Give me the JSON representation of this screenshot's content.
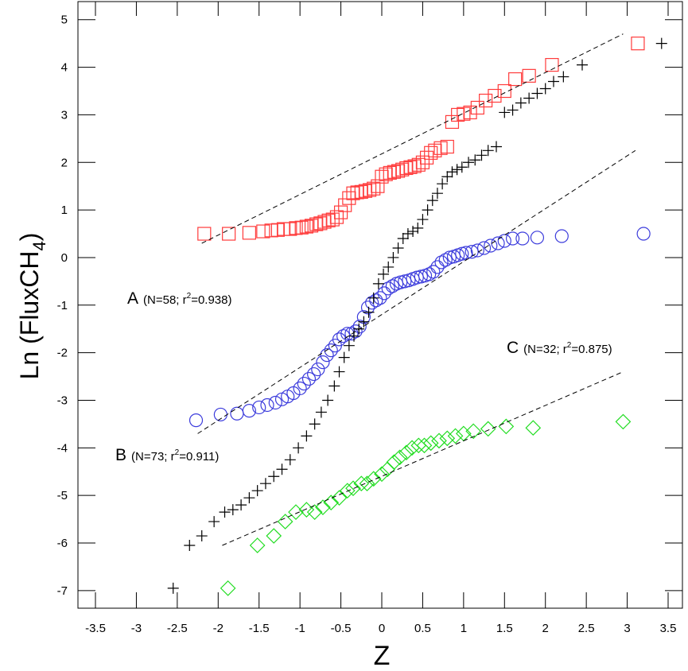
{
  "chart_data": {
    "type": "scatter",
    "x_label": "Z",
    "y_label": {
      "main": "Ln (FluxCH",
      "sub": "4",
      "tail": ")"
    },
    "xlim": [
      -3.714,
      3.675
    ],
    "ylim": [
      -7.37,
      5.38
    ],
    "xticks": [
      -3.5,
      -3,
      -2.5,
      -2,
      -1.5,
      -1,
      -0.5,
      0,
      0.5,
      1,
      1.5,
      2,
      2.5,
      3,
      3.5
    ],
    "yticks": [
      -7,
      -6,
      -5,
      -4,
      -3,
      -2,
      -1,
      0,
      1,
      2,
      3,
      4,
      5
    ],
    "legend": false,
    "annotations": [
      {
        "label": "A",
        "text": "(N=58; r",
        "sup": "2",
        "tail": "=0.938)"
      },
      {
        "label": "B",
        "text": "(N=73; r",
        "sup": "2",
        "tail": "=0.911)"
      },
      {
        "label": "C",
        "text": "(N=32; r",
        "sup": "2",
        "tail": "=0.875)"
      }
    ],
    "series": [
      {
        "marker": "square",
        "color": "#ff3b3b",
        "x": [
          -2.17,
          -1.87,
          -1.62,
          -1.45,
          -1.35,
          -1.27,
          -1.2,
          -1.12,
          -1.05,
          -0.98,
          -0.92,
          -0.86,
          -0.8,
          -0.75,
          -0.7,
          -0.65,
          -0.6,
          -0.55,
          -0.5,
          -0.45,
          -0.4,
          -0.35,
          -0.3,
          -0.25,
          -0.2,
          -0.15,
          -0.1,
          -0.05,
          0,
          0.05,
          0.1,
          0.15,
          0.2,
          0.25,
          0.3,
          0.35,
          0.4,
          0.45,
          0.5,
          0.55,
          0.6,
          0.65,
          0.72,
          0.8,
          0.86,
          0.93,
          1.0,
          1.08,
          1.17,
          1.27,
          1.38,
          1.5,
          1.63,
          1.8,
          2.08,
          3.13
        ],
        "values": [
          0.5,
          0.5,
          0.52,
          0.55,
          0.57,
          0.58,
          0.6,
          0.6,
          0.62,
          0.63,
          0.65,
          0.67,
          0.7,
          0.72,
          0.75,
          0.78,
          0.8,
          0.85,
          0.95,
          1.1,
          1.25,
          1.35,
          1.37,
          1.38,
          1.4,
          1.42,
          1.45,
          1.5,
          1.7,
          1.75,
          1.78,
          1.8,
          1.82,
          1.85,
          1.88,
          1.9,
          1.92,
          1.95,
          2.0,
          2.1,
          2.2,
          2.25,
          2.3,
          2.33,
          2.85,
          3.0,
          3.02,
          3.05,
          3.15,
          3.3,
          3.4,
          3.5,
          3.75,
          3.82,
          4.05,
          4.5
        ]
      },
      {
        "marker": "circle",
        "color": "#3c3cdc",
        "x": [
          -2.27,
          -1.97,
          -1.77,
          -1.62,
          -1.5,
          -1.4,
          -1.3,
          -1.22,
          -1.15,
          -1.08,
          -1.0,
          -0.95,
          -0.89,
          -0.83,
          -0.78,
          -0.72,
          -0.67,
          -0.62,
          -0.57,
          -0.52,
          -0.47,
          -0.42,
          -0.37,
          -0.32,
          -0.27,
          -0.22,
          -0.17,
          -0.12,
          -0.07,
          -0.02,
          0.03,
          0.08,
          0.13,
          0.18,
          0.23,
          0.28,
          0.33,
          0.38,
          0.43,
          0.48,
          0.53,
          0.58,
          0.63,
          0.68,
          0.73,
          0.78,
          0.83,
          0.88,
          0.93,
          0.98,
          1.03,
          1.1,
          1.17,
          1.25,
          1.33,
          1.42,
          1.5,
          1.6,
          1.72,
          1.9,
          2.2,
          3.2
        ],
        "values": [
          -3.42,
          -3.3,
          -3.28,
          -3.22,
          -3.15,
          -3.1,
          -3.05,
          -2.98,
          -2.92,
          -2.85,
          -2.75,
          -2.65,
          -2.55,
          -2.45,
          -2.35,
          -2.2,
          -2.05,
          -1.95,
          -1.85,
          -1.72,
          -1.65,
          -1.6,
          -1.6,
          -1.55,
          -1.45,
          -1.25,
          -1.05,
          -0.95,
          -0.9,
          -0.85,
          -0.75,
          -0.65,
          -0.6,
          -0.55,
          -0.52,
          -0.5,
          -0.48,
          -0.45,
          -0.42,
          -0.4,
          -0.38,
          -0.35,
          -0.3,
          -0.2,
          -0.1,
          -0.05,
          0.0,
          0.02,
          0.05,
          0.08,
          0.1,
          0.12,
          0.15,
          0.2,
          0.25,
          0.3,
          0.35,
          0.4,
          0.4,
          0.42,
          0.45,
          0.5
        ]
      },
      {
        "marker": "diamond",
        "color": "#22dd22",
        "x": [
          -1.88,
          -1.52,
          -1.32,
          -1.18,
          -1.05,
          -0.92,
          -0.82,
          -0.72,
          -0.62,
          -0.52,
          -0.42,
          -0.35,
          -0.25,
          -0.18,
          -0.1,
          0,
          0.07,
          0.15,
          0.22,
          0.3,
          0.37,
          0.45,
          0.52,
          0.6,
          0.7,
          0.8,
          0.9,
          1.0,
          1.12,
          1.3,
          1.52,
          1.85,
          2.95
        ],
        "values": [
          -6.95,
          -6.05,
          -5.85,
          -5.55,
          -5.35,
          -5.3,
          -5.35,
          -5.25,
          -5.15,
          -5.05,
          -4.9,
          -4.85,
          -4.75,
          -4.75,
          -4.65,
          -4.55,
          -4.45,
          -4.3,
          -4.2,
          -4.1,
          -4.0,
          -3.95,
          -3.95,
          -3.9,
          -3.85,
          -3.8,
          -3.75,
          -3.7,
          -3.65,
          -3.6,
          -3.55,
          -3.58,
          -3.45
        ]
      },
      {
        "marker": "plus",
        "color": "#000000",
        "x": [
          -2.55,
          -2.35,
          -2.2,
          -2.05,
          -1.92,
          -1.82,
          -1.72,
          -1.62,
          -1.52,
          -1.42,
          -1.32,
          -1.22,
          -1.12,
          -1.02,
          -0.92,
          -0.82,
          -0.74,
          -0.66,
          -0.58,
          -0.52,
          -0.46,
          -0.4,
          -0.34,
          -0.28,
          -0.22,
          -0.16,
          -0.1,
          -0.04,
          0.02,
          0.08,
          0.14,
          0.2,
          0.26,
          0.32,
          0.38,
          0.44,
          0.5,
          0.56,
          0.62,
          0.68,
          0.74,
          0.8,
          0.86,
          0.92,
          0.98,
          1.06,
          1.14,
          1.22,
          1.3,
          1.4,
          1.5,
          1.6,
          1.7,
          1.8,
          1.9,
          2.0,
          2.1,
          2.22,
          2.45,
          3.42
        ],
        "values": [
          -6.95,
          -6.05,
          -5.85,
          -5.55,
          -5.35,
          -5.3,
          -5.2,
          -5.05,
          -4.9,
          -4.75,
          -4.6,
          -4.45,
          -4.25,
          -4.0,
          -3.75,
          -3.5,
          -3.25,
          -3.0,
          -2.7,
          -2.4,
          -2.1,
          -1.85,
          -1.65,
          -1.5,
          -1.35,
          -1.15,
          -0.85,
          -0.55,
          -0.35,
          -0.2,
          0.0,
          0.2,
          0.4,
          0.5,
          0.55,
          0.62,
          0.8,
          1.0,
          1.2,
          1.35,
          1.55,
          1.7,
          1.8,
          1.85,
          1.9,
          2.0,
          2.05,
          2.15,
          2.25,
          2.33,
          3.05,
          3.1,
          3.25,
          3.35,
          3.45,
          3.55,
          3.7,
          3.8,
          4.05,
          4.5
        ]
      },
      {
        "marker": "dashed-line",
        "color": "#000000",
        "x": [
          -2.2,
          2.95
        ],
        "values": [
          0.3,
          4.7
        ]
      },
      {
        "marker": "dashed-line",
        "color": "#000000",
        "x": [
          -2.25,
          3.1
        ],
        "values": [
          -3.7,
          2.25
        ]
      },
      {
        "marker": "dashed-line",
        "color": "#000000",
        "x": [
          -1.95,
          2.95
        ],
        "values": [
          -6.05,
          -2.4
        ]
      }
    ]
  }
}
